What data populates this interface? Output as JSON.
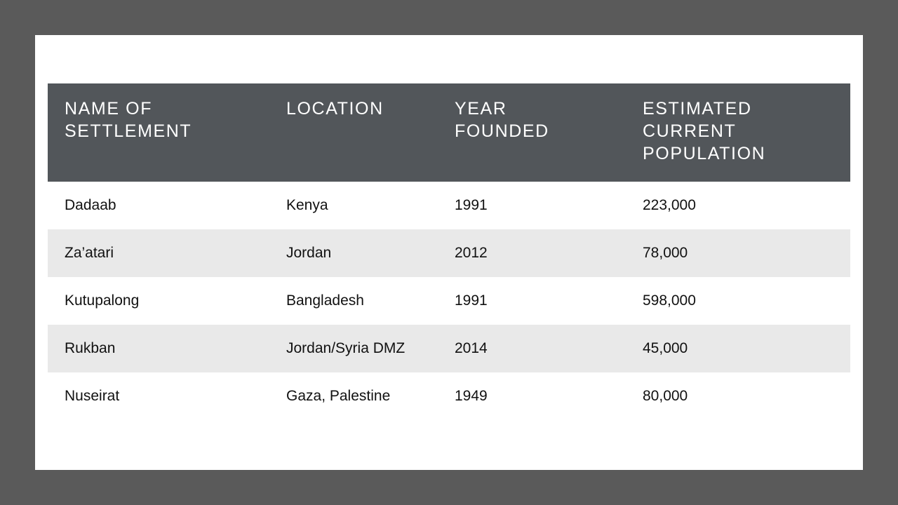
{
  "table": {
    "headers": [
      "NAME OF\nSETTLEMENT",
      "LOCATION",
      "YEAR\nFOUNDED",
      "ESTIMATED\nCURRENT\nPOPULATION"
    ],
    "rows": [
      [
        "Dadaab",
        "Kenya",
        "1991",
        "223,000"
      ],
      [
        "Za’atari",
        "Jordan",
        "2012",
        "78,000"
      ],
      [
        "Kutupalong",
        "Bangladesh",
        "1991",
        "598,000"
      ],
      [
        "Rukban",
        "Jordan/Syria DMZ",
        "2014",
        "45,000"
      ],
      [
        "Nuseirat",
        "Gaza, Palestine",
        "1949",
        "80,000"
      ]
    ]
  },
  "colors": {
    "background": "#5a5a5a",
    "slide": "#ffffff",
    "header": "#52565a",
    "stripe": "#e9e9e9"
  }
}
